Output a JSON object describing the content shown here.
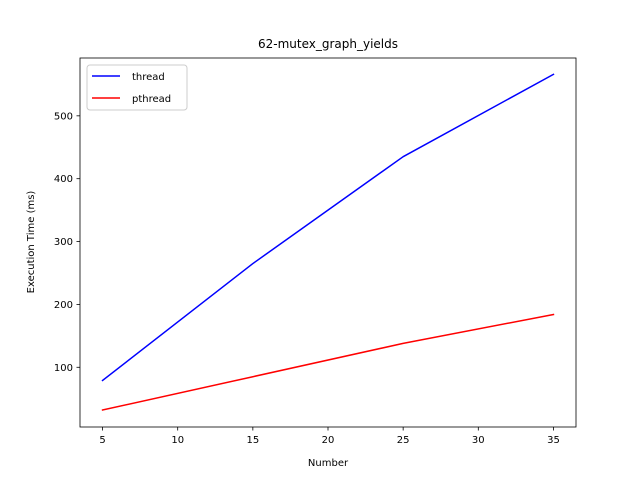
{
  "chart_data": {
    "type": "line",
    "title": "62-mutex_graph_yields",
    "xlabel": "Number",
    "ylabel": "Execution Time (ms)",
    "x": [
      5,
      15,
      25,
      35
    ],
    "series": [
      {
        "name": "thread",
        "color": "#0000ff",
        "values": [
          79,
          265,
          435,
          566
        ]
      },
      {
        "name": "pthread",
        "color": "#ff0000",
        "values": [
          32,
          85,
          138,
          184
        ]
      }
    ],
    "xlim": [
      3.5,
      36.5
    ],
    "ylim": [
      5,
      592
    ],
    "xticks": [
      5,
      10,
      15,
      20,
      25,
      30,
      35
    ],
    "yticks": [
      100,
      200,
      300,
      400,
      500
    ],
    "grid": false,
    "legend_position": "upper left"
  }
}
